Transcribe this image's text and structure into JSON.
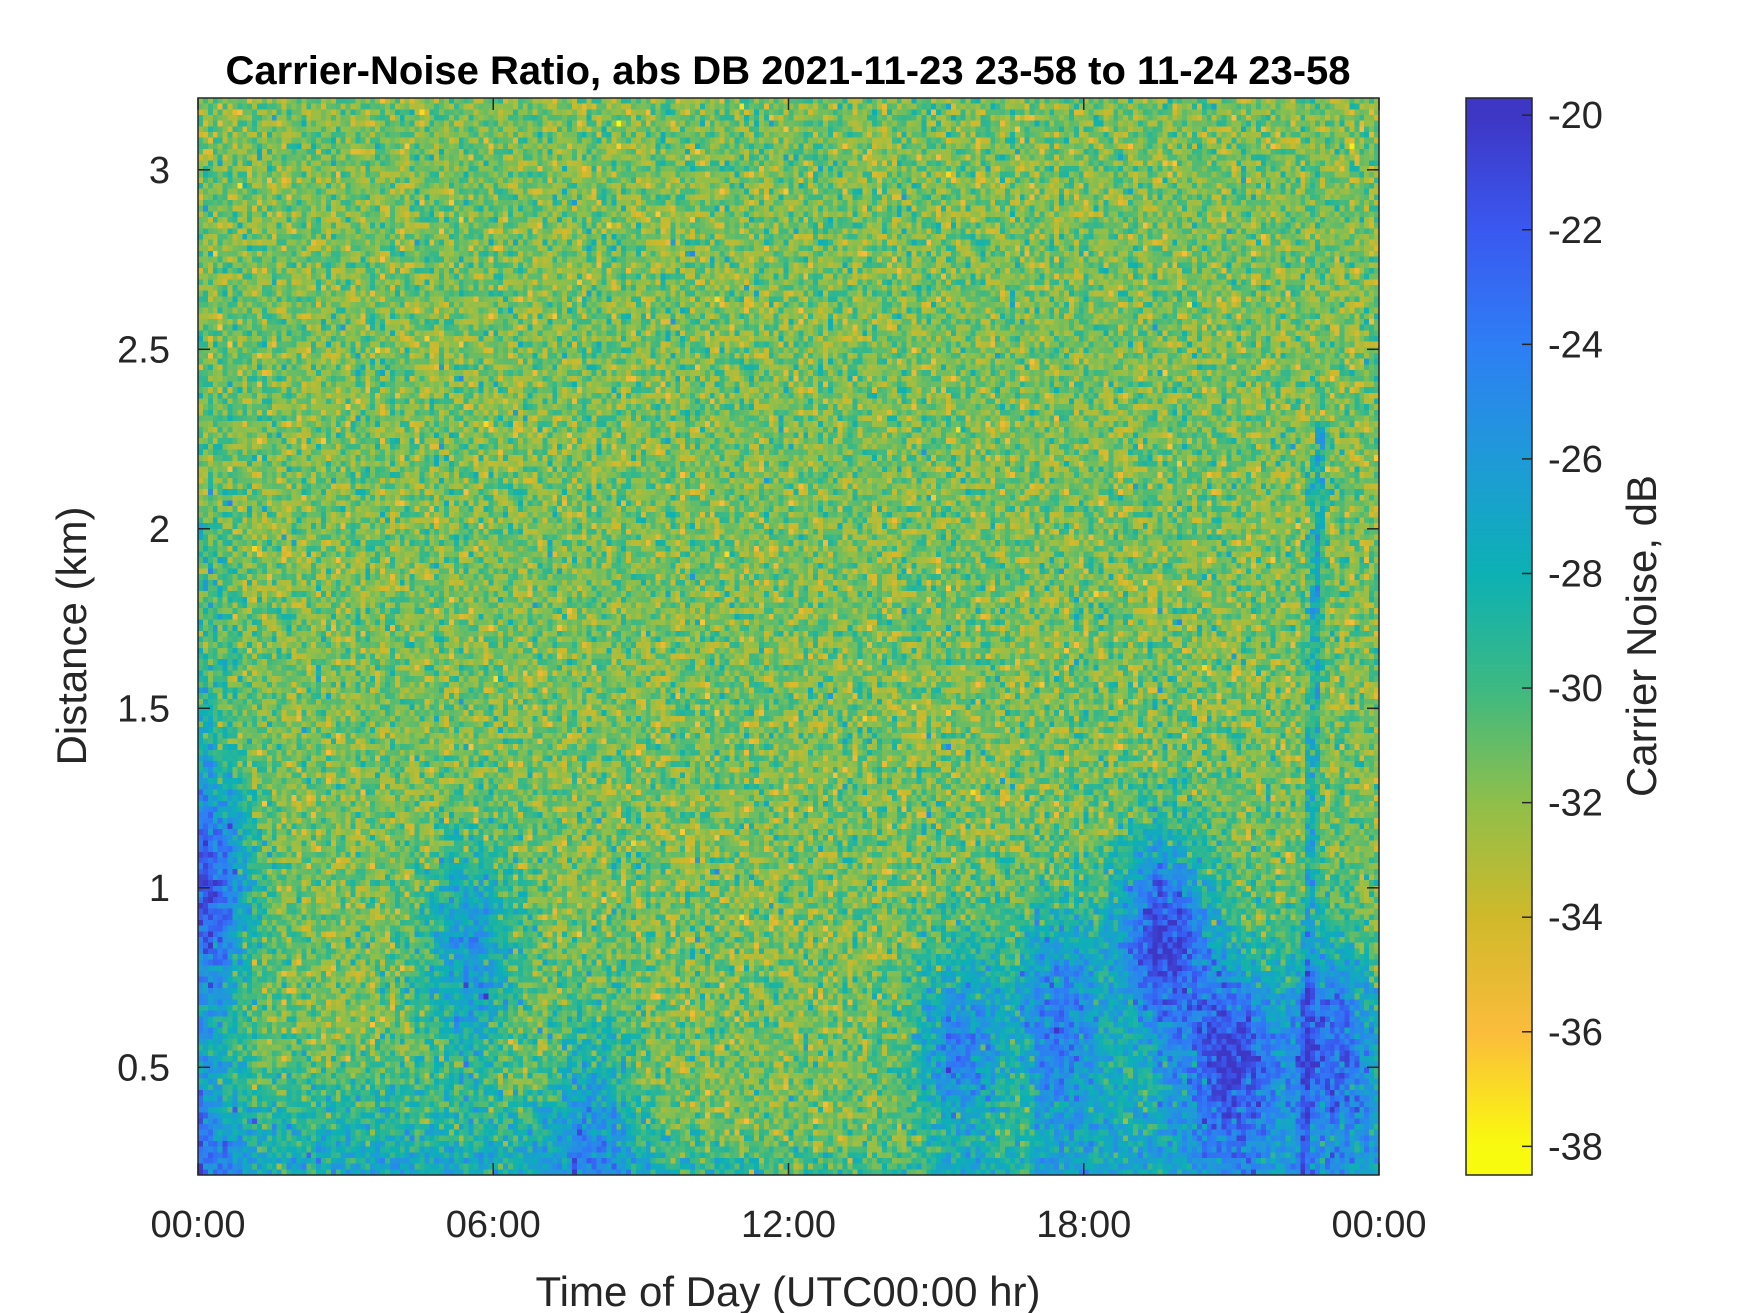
{
  "chart_data": {
    "type": "heatmap",
    "title": "Carrier-Noise Ratio, abs DB 2021-11-23 23-58 to 11-24 23-58",
    "xlabel": "Time of Day (UTC00:00 hr)",
    "ylabel": "Distance (km)",
    "colorbar_label": "Carrier Noise, dB",
    "x_ticks": [
      {
        "value": 0,
        "label": "00:00"
      },
      {
        "value": 6,
        "label": "06:00"
      },
      {
        "value": 12,
        "label": "12:00"
      },
      {
        "value": 18,
        "label": "18:00"
      },
      {
        "value": 24,
        "label": "00:00"
      }
    ],
    "xlim": [
      0,
      24
    ],
    "y_ticks": [
      {
        "value": 0.5,
        "label": "0.5"
      },
      {
        "value": 1,
        "label": "1"
      },
      {
        "value": 1.5,
        "label": "1.5"
      },
      {
        "value": 2,
        "label": "2"
      },
      {
        "value": 2.5,
        "label": "2.5"
      },
      {
        "value": 3,
        "label": "3"
      }
    ],
    "ylim": [
      0.2,
      3.2
    ],
    "colorbar_ticks": [
      {
        "value": -20,
        "label": "-20"
      },
      {
        "value": -22,
        "label": "-22"
      },
      {
        "value": -24,
        "label": "-24"
      },
      {
        "value": -26,
        "label": "-26"
      },
      {
        "value": -28,
        "label": "-28"
      },
      {
        "value": -30,
        "label": "-30"
      },
      {
        "value": -32,
        "label": "-32"
      },
      {
        "value": -34,
        "label": "-34"
      },
      {
        "value": -36,
        "label": "-36"
      },
      {
        "value": -38,
        "label": "-38"
      }
    ],
    "clim": [
      -38.5,
      -19.7
    ],
    "colormap": "parula reversed (yellow = -38, dark blue = -20)",
    "colormap_stops": [
      "#f9fb0e",
      "#fbbc3c",
      "#d0b92a",
      "#8fbf4a",
      "#3db982",
      "#0cb1b4",
      "#1f9ad8",
      "#2e7ef5",
      "#3a58f0",
      "#3e36c4"
    ],
    "background_level_db": -31.5,
    "features": [
      {
        "time_hr": 0.2,
        "distance_km": 1.0,
        "value_db": -24.5
      },
      {
        "time_hr": 5.5,
        "distance_km": 0.8,
        "value_db": -25.5
      },
      {
        "time_hr": 8.0,
        "distance_km": 0.35,
        "value_db": -26.5
      },
      {
        "time_hr": 15.5,
        "distance_km": 0.55,
        "value_db": -24.5
      },
      {
        "time_hr": 17.5,
        "distance_km": 0.65,
        "value_db": -24.0
      },
      {
        "time_hr": 19.6,
        "distance_km": 0.85,
        "value_db": -20.8
      },
      {
        "time_hr": 21.0,
        "distance_km": 0.55,
        "value_db": -23.0
      },
      {
        "time_hr": 23.0,
        "distance_km": 0.6,
        "value_db": -24.5
      }
    ]
  }
}
